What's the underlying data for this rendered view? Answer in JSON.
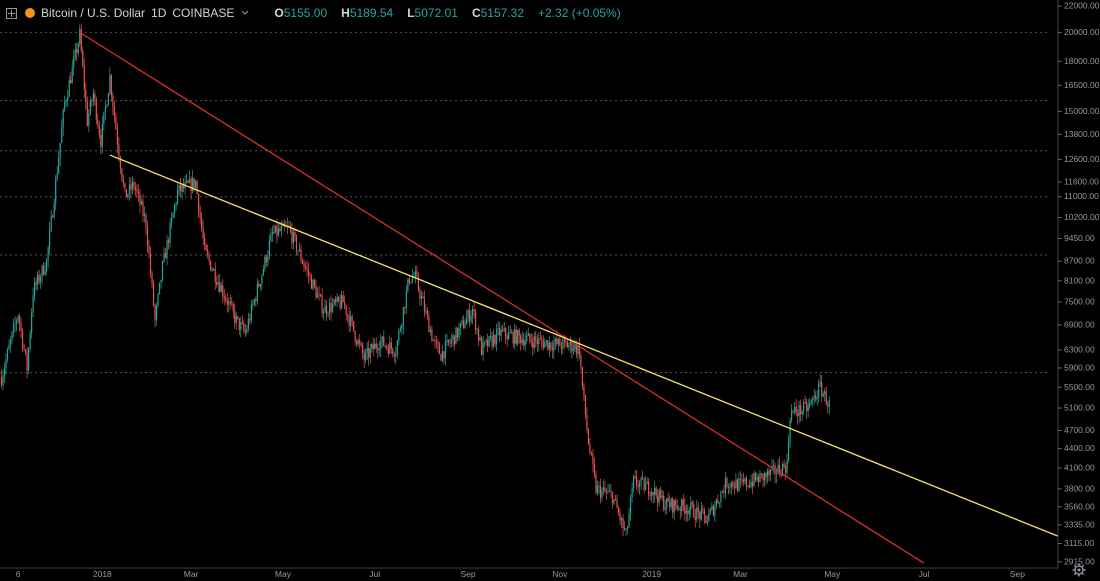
{
  "header": {
    "symbol": "Bitcoin / U.S. Dollar",
    "interval": "1D",
    "exchange": "COINBASE",
    "open_label": "O",
    "open": "5155.00",
    "high_label": "H",
    "high": "5189.54",
    "low_label": "L",
    "low": "5072.01",
    "close_label": "C",
    "close": "5157.32",
    "change": "+2.32 (+0.05%)"
  },
  "colors": {
    "up": "#26a69a",
    "down": "#ef5350",
    "red_trendline": "#d32f2f",
    "yellow_trendline": "#f5e663",
    "grid": "#555555"
  },
  "icons": [
    "expand-icon",
    "bitcoin-icon",
    "chevron-down-icon",
    "gear-icon"
  ],
  "chart_data": {
    "type": "candlestick",
    "y_scale": "log",
    "ylim": [
      2850,
      22500
    ],
    "xlim": [
      "2017-10-25",
      "2019-09-28"
    ],
    "y_ticks": [
      "22000.00",
      "20000.00",
      "18000.00",
      "16500.00",
      "15000.00",
      "13800.00",
      "12600.00",
      "11600.00",
      "11000.00",
      "10200.00",
      "9450.00",
      "8700.00",
      "8100.00",
      "7500.00",
      "6900.00",
      "6300.00",
      "5900.00",
      "5500.00",
      "5100.00",
      "4700.00",
      "4400.00",
      "4100.00",
      "3800.00",
      "3560.00",
      "3335.00",
      "3115.00",
      "2915.00"
    ],
    "x_ticks": [
      {
        "date": "2017-11-06",
        "label": "6"
      },
      {
        "date": "2018-01-01",
        "label": "2018"
      },
      {
        "date": "2018-03-01",
        "label": "Mar"
      },
      {
        "date": "2018-05-01",
        "label": "May"
      },
      {
        "date": "2018-07-01",
        "label": "Jul"
      },
      {
        "date": "2018-09-01",
        "label": "Sep"
      },
      {
        "date": "2018-11-01",
        "label": "Nov"
      },
      {
        "date": "2019-01-01",
        "label": "2019"
      },
      {
        "date": "2019-03-01",
        "label": "Mar"
      },
      {
        "date": "2019-05-01",
        "label": "May"
      },
      {
        "date": "2019-07-01",
        "label": "Jul"
      },
      {
        "date": "2019-09-01",
        "label": "Sep"
      }
    ],
    "dashed_gridlines": [
      20000,
      15600,
      13000,
      11000,
      8900,
      5800
    ],
    "price_path": [
      [
        "2017-10-26",
        5700
      ],
      [
        "2017-11-06",
        7200
      ],
      [
        "2017-11-12",
        5900
      ],
      [
        "2017-11-16",
        7800
      ],
      [
        "2017-11-25",
        8700
      ],
      [
        "2017-11-29",
        10500
      ],
      [
        "2017-12-07",
        15500
      ],
      [
        "2017-12-11",
        17000
      ],
      [
        "2017-12-17",
        19800
      ],
      [
        "2017-12-22",
        14500
      ],
      [
        "2017-12-26",
        16000
      ],
      [
        "2017-12-31",
        13500
      ],
      [
        "2018-01-06",
        17000
      ],
      [
        "2018-01-11",
        13500
      ],
      [
        "2018-01-16",
        11000
      ],
      [
        "2018-01-22",
        11500
      ],
      [
        "2018-01-30",
        10000
      ],
      [
        "2018-02-05",
        7000
      ],
      [
        "2018-02-10",
        8500
      ],
      [
        "2018-02-20",
        11200
      ],
      [
        "2018-03-04",
        11600
      ],
      [
        "2018-03-10",
        9000
      ],
      [
        "2018-03-18",
        8200
      ],
      [
        "2018-03-31",
        7000
      ],
      [
        "2018-04-06",
        6700
      ],
      [
        "2018-04-15",
        8000
      ],
      [
        "2018-04-24",
        9600
      ],
      [
        "2018-05-05",
        9800
      ],
      [
        "2018-05-15",
        8600
      ],
      [
        "2018-05-28",
        7300
      ],
      [
        "2018-06-10",
        7500
      ],
      [
        "2018-06-24",
        6100
      ],
      [
        "2018-07-04",
        6500
      ],
      [
        "2018-07-15",
        6300
      ],
      [
        "2018-07-24",
        8200
      ],
      [
        "2018-07-28",
        8200
      ],
      [
        "2018-08-10",
        6400
      ],
      [
        "2018-08-14",
        6200
      ],
      [
        "2018-08-25",
        6700
      ],
      [
        "2018-09-04",
        7300
      ],
      [
        "2018-09-10",
        6300
      ],
      [
        "2018-09-22",
        6700
      ],
      [
        "2018-10-10",
        6550
      ],
      [
        "2018-10-25",
        6450
      ],
      [
        "2018-11-10",
        6400
      ],
      [
        "2018-11-14",
        6300
      ],
      [
        "2018-11-16",
        5500
      ],
      [
        "2018-11-20",
        4500
      ],
      [
        "2018-11-25",
        3800
      ],
      [
        "2018-12-06",
        3700
      ],
      [
        "2018-12-15",
        3200
      ],
      [
        "2018-12-20",
        3900
      ],
      [
        "2019-01-01",
        3800
      ],
      [
        "2019-01-10",
        3600
      ],
      [
        "2019-01-25",
        3550
      ],
      [
        "2019-02-07",
        3400
      ],
      [
        "2019-02-20",
        3900
      ],
      [
        "2019-03-01",
        3850
      ],
      [
        "2019-03-20",
        4000
      ],
      [
        "2019-04-01",
        4150
      ],
      [
        "2019-04-03",
        5000
      ],
      [
        "2019-04-15",
        5100
      ],
      [
        "2019-04-23",
        5500
      ],
      [
        "2019-04-29",
        5157
      ]
    ],
    "trendlines": [
      {
        "color": "red",
        "from": [
          "2017-12-17",
          20000
        ],
        "to": [
          "2019-07-01",
          2900
        ]
      },
      {
        "color": "yellow",
        "from": [
          "2018-01-06",
          12800
        ],
        "to": [
          "2019-09-28",
          3200
        ]
      }
    ]
  }
}
